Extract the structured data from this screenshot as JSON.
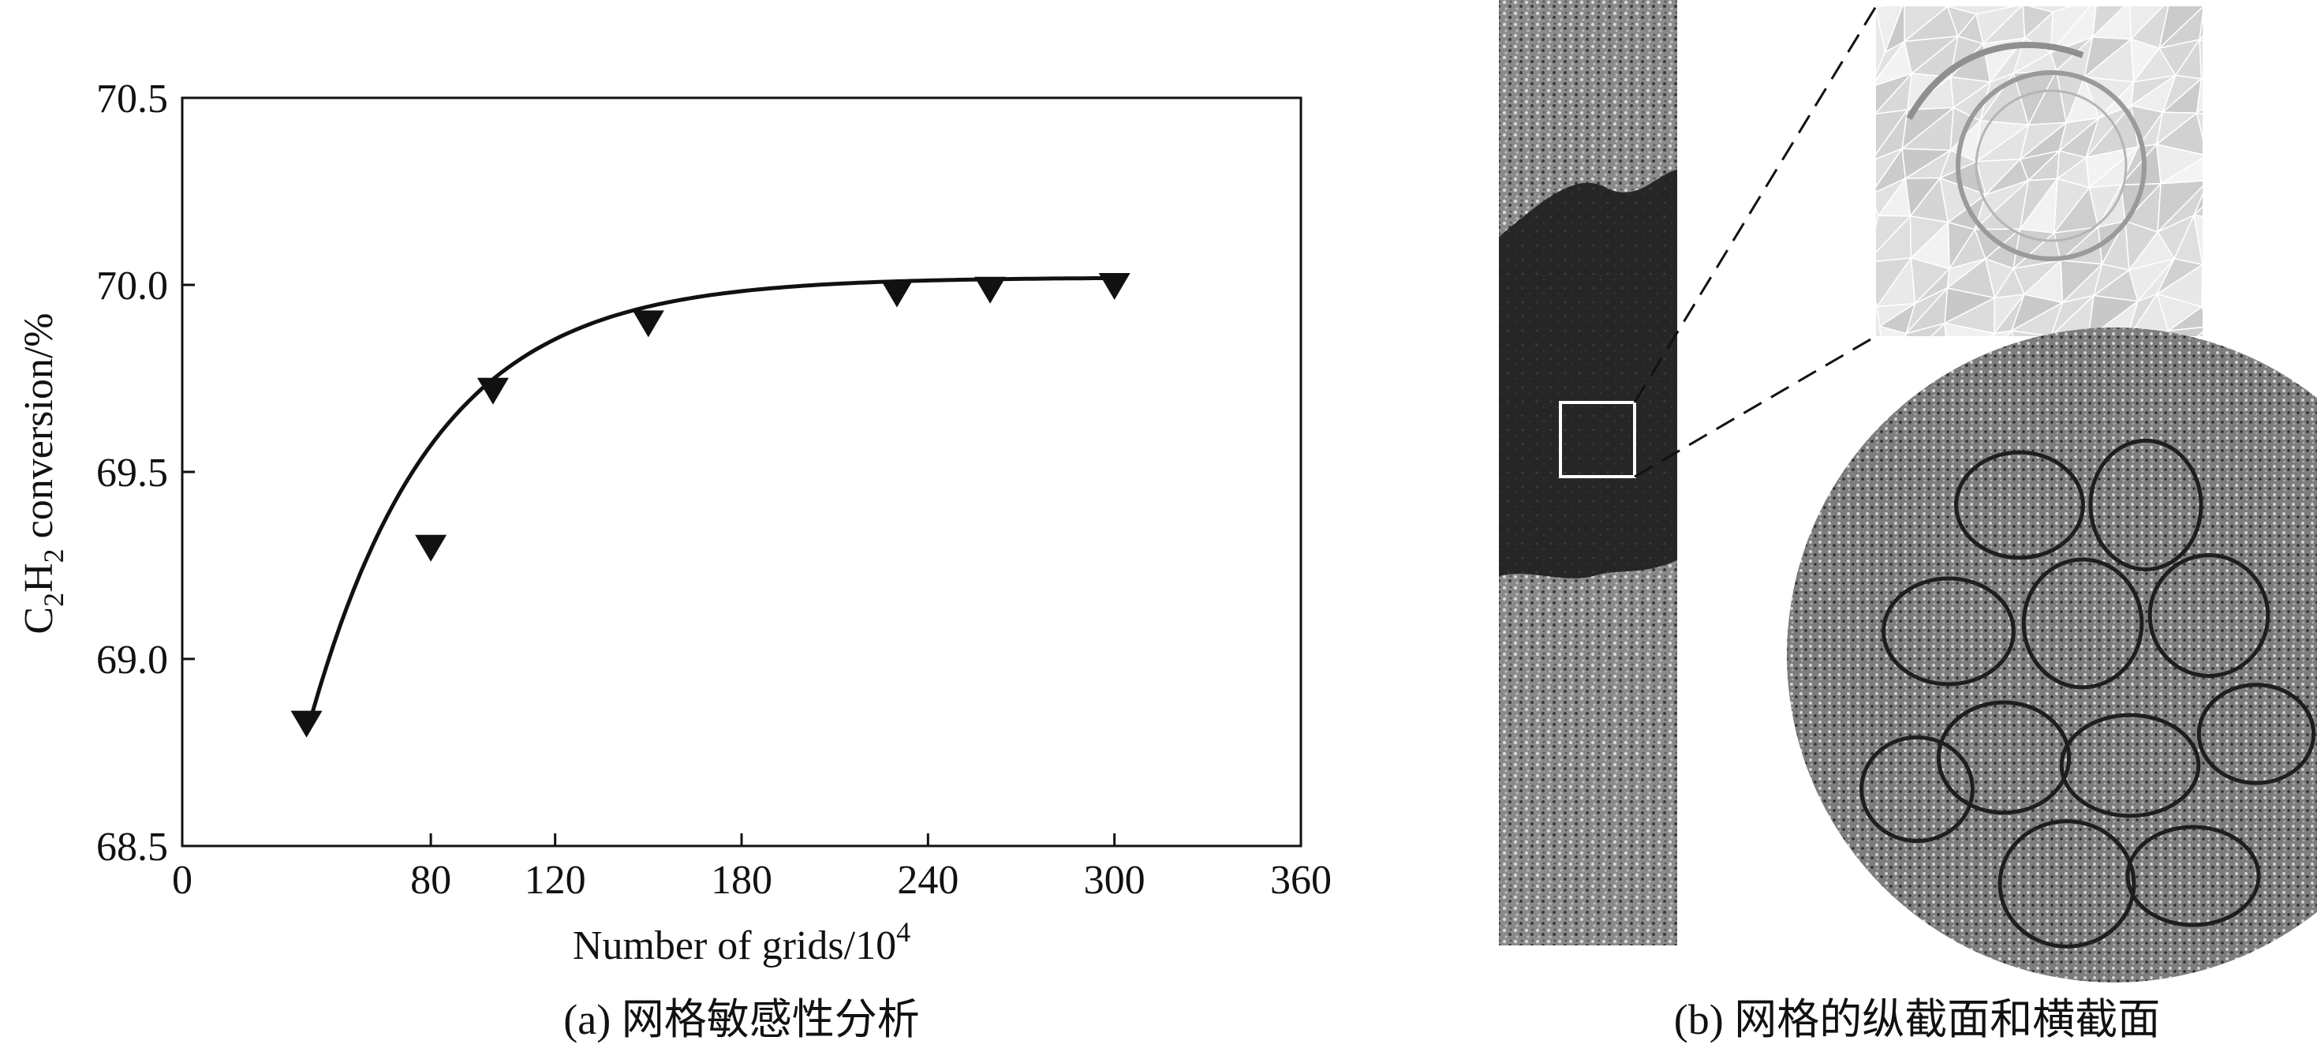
{
  "panel_a": {
    "caption": "(a) 网格敏感性分析",
    "chart_data": {
      "type": "scatter",
      "xlabel_main": "Number of grids/10",
      "xlabel_sup": "4",
      "ylabel_c": "C",
      "ylabel_sub1": "2",
      "ylabel_h": "H",
      "ylabel_sub2": "2",
      "ylabel_rest": " conversion/%",
      "xlim": [
        0,
        360
      ],
      "ylim": [
        68.5,
        70.5
      ],
      "x_ticks": [
        0,
        80,
        120,
        180,
        240,
        300,
        360
      ],
      "x_tick_labels": [
        "0",
        "80",
        "120",
        "180",
        "240",
        "300",
        "360"
      ],
      "y_ticks": [
        68.5,
        69.0,
        69.5,
        70.0,
        70.5
      ],
      "y_tick_labels": [
        "68.5",
        "69.0",
        "69.5",
        "70.0",
        "70.5"
      ],
      "series": [
        {
          "marker": "triangle-down",
          "x": [
            40,
            80,
            100,
            150,
            230,
            260,
            300
          ],
          "y": [
            68.83,
            69.3,
            69.72,
            69.9,
            69.98,
            69.99,
            70.0
          ]
        }
      ],
      "fit_curve": {
        "model": "exponential_saturation",
        "x_start": 40,
        "x_end": 300,
        "asymptote": 70.02,
        "amplitude": 1.22,
        "rate": 0.025
      },
      "grid": false
    }
  },
  "panel_b": {
    "caption": "(b) 网格的纵截面和横截面",
    "colors": {
      "mesh_dark": "#262626",
      "mesh_light": "#8a8a8a",
      "zoom_bg": "#e6e6e6",
      "frame": "#ffffff"
    }
  }
}
